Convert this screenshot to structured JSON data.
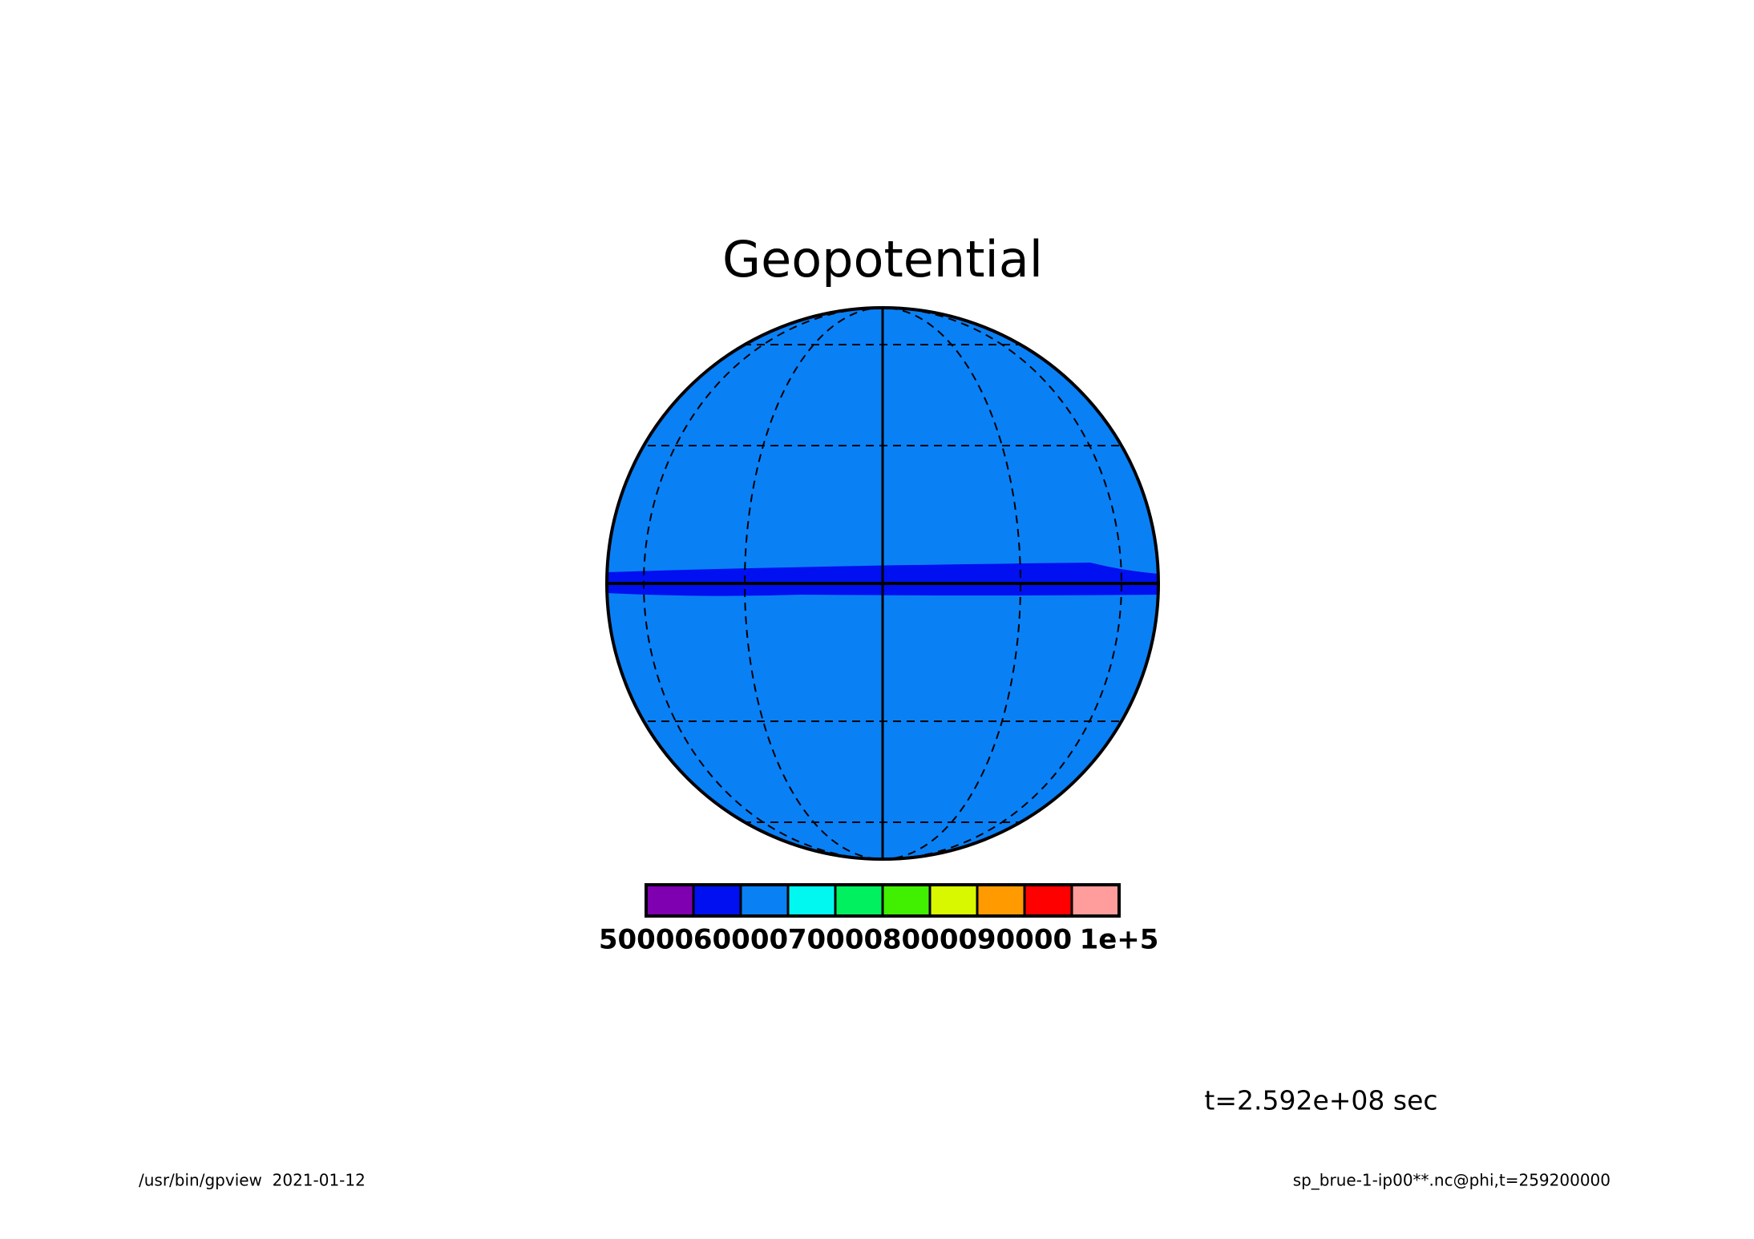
{
  "chart_data": {
    "type": "contour",
    "title": "Geopotential",
    "time_label": "t=2.592e+08 sec",
    "footer_left": "/usr/bin/gpview  2021-01-12",
    "footer_right": "sp_brue-1-ip00**.nc@phi,t=259200000",
    "colorbar": {
      "xlim": [
        50000,
        100000
      ],
      "levels": [
        50000,
        55000,
        60000,
        65000,
        70000,
        75000,
        80000,
        85000,
        90000,
        95000,
        100000
      ],
      "colors": [
        "#7f00b0",
        "#0010f0",
        "#0a80f5",
        "#00f8f0",
        "#00f060",
        "#40f000",
        "#d8f800",
        "#ff9a00",
        "#ff0000",
        "#ff9c9c"
      ],
      "xticks": [
        50000,
        60000,
        70000,
        80000,
        90000,
        {
          "value": 100000,
          "label": "1e+5"
        }
      ]
    }
  }
}
